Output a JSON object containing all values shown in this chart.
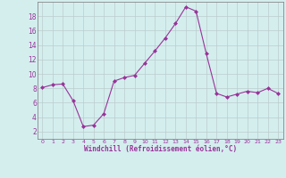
{
  "x": [
    0,
    1,
    2,
    3,
    4,
    5,
    6,
    7,
    8,
    9,
    10,
    11,
    12,
    13,
    14,
    15,
    16,
    17,
    18,
    19,
    20,
    21,
    22,
    23
  ],
  "y": [
    8.1,
    8.5,
    8.6,
    6.3,
    2.7,
    2.9,
    4.5,
    9.0,
    9.5,
    9.8,
    11.5,
    13.2,
    15.0,
    17.0,
    19.3,
    18.7,
    12.8,
    7.3,
    6.8,
    7.2,
    7.6,
    7.4,
    8.0,
    7.3
  ],
  "line_color": "#993399",
  "marker": "D",
  "marker_size": 2,
  "xlabel": "Windchill (Refroidissement éolien,°C)",
  "ylabel": "",
  "title": "",
  "bg_color": "#d4eeee",
  "grid_color": "#bbcccc",
  "tick_color": "#993399",
  "label_color": "#993399",
  "ylim": [
    1,
    20
  ],
  "xlim": [
    -0.5,
    23.5
  ],
  "yticks": [
    2,
    4,
    6,
    8,
    10,
    12,
    14,
    16,
    18
  ],
  "xticks": [
    0,
    1,
    2,
    3,
    4,
    5,
    6,
    7,
    8,
    9,
    10,
    11,
    12,
    13,
    14,
    15,
    16,
    17,
    18,
    19,
    20,
    21,
    22,
    23
  ]
}
